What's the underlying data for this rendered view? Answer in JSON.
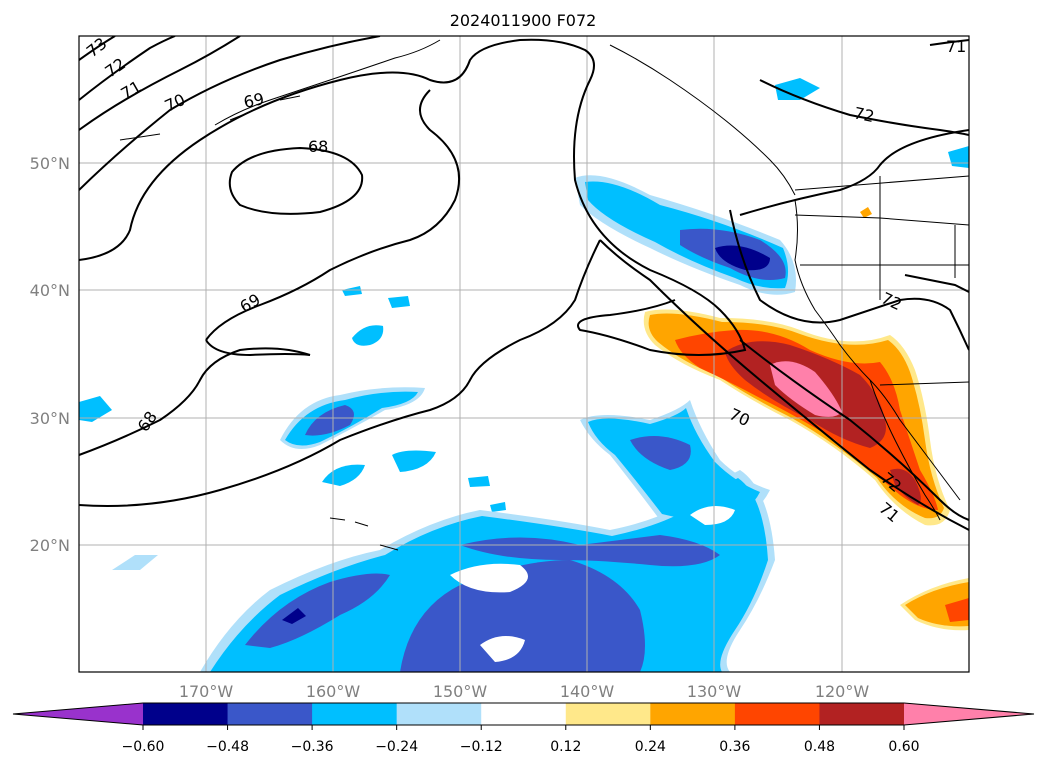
{
  "title": "2024011900 F072",
  "lat_labels": [
    "50°N",
    "40°N",
    "30°N",
    "20°N"
  ],
  "lon_labels": [
    "170°W",
    "160°W",
    "150°W",
    "140°W",
    "130°W",
    "120°W"
  ],
  "colorbar": {
    "ticks": [
      "−0.60",
      "−0.48",
      "−0.36",
      "−0.24",
      "−0.12",
      "0.12",
      "0.24",
      "0.36",
      "0.48",
      "0.60"
    ],
    "colors": [
      "#9932cc",
      "#00008b",
      "#3a57c9",
      "#00bfff",
      "#b0e0fa",
      "#ffffff",
      "#ffe88a",
      "#ffa500",
      "#ff4500",
      "#b22222",
      "#ff80aa"
    ]
  },
  "contour_labels": [
    "73",
    "72",
    "71",
    "70",
    "69",
    "68",
    "69",
    "68",
    "72",
    "72",
    "70",
    "72",
    "71",
    "71"
  ]
}
